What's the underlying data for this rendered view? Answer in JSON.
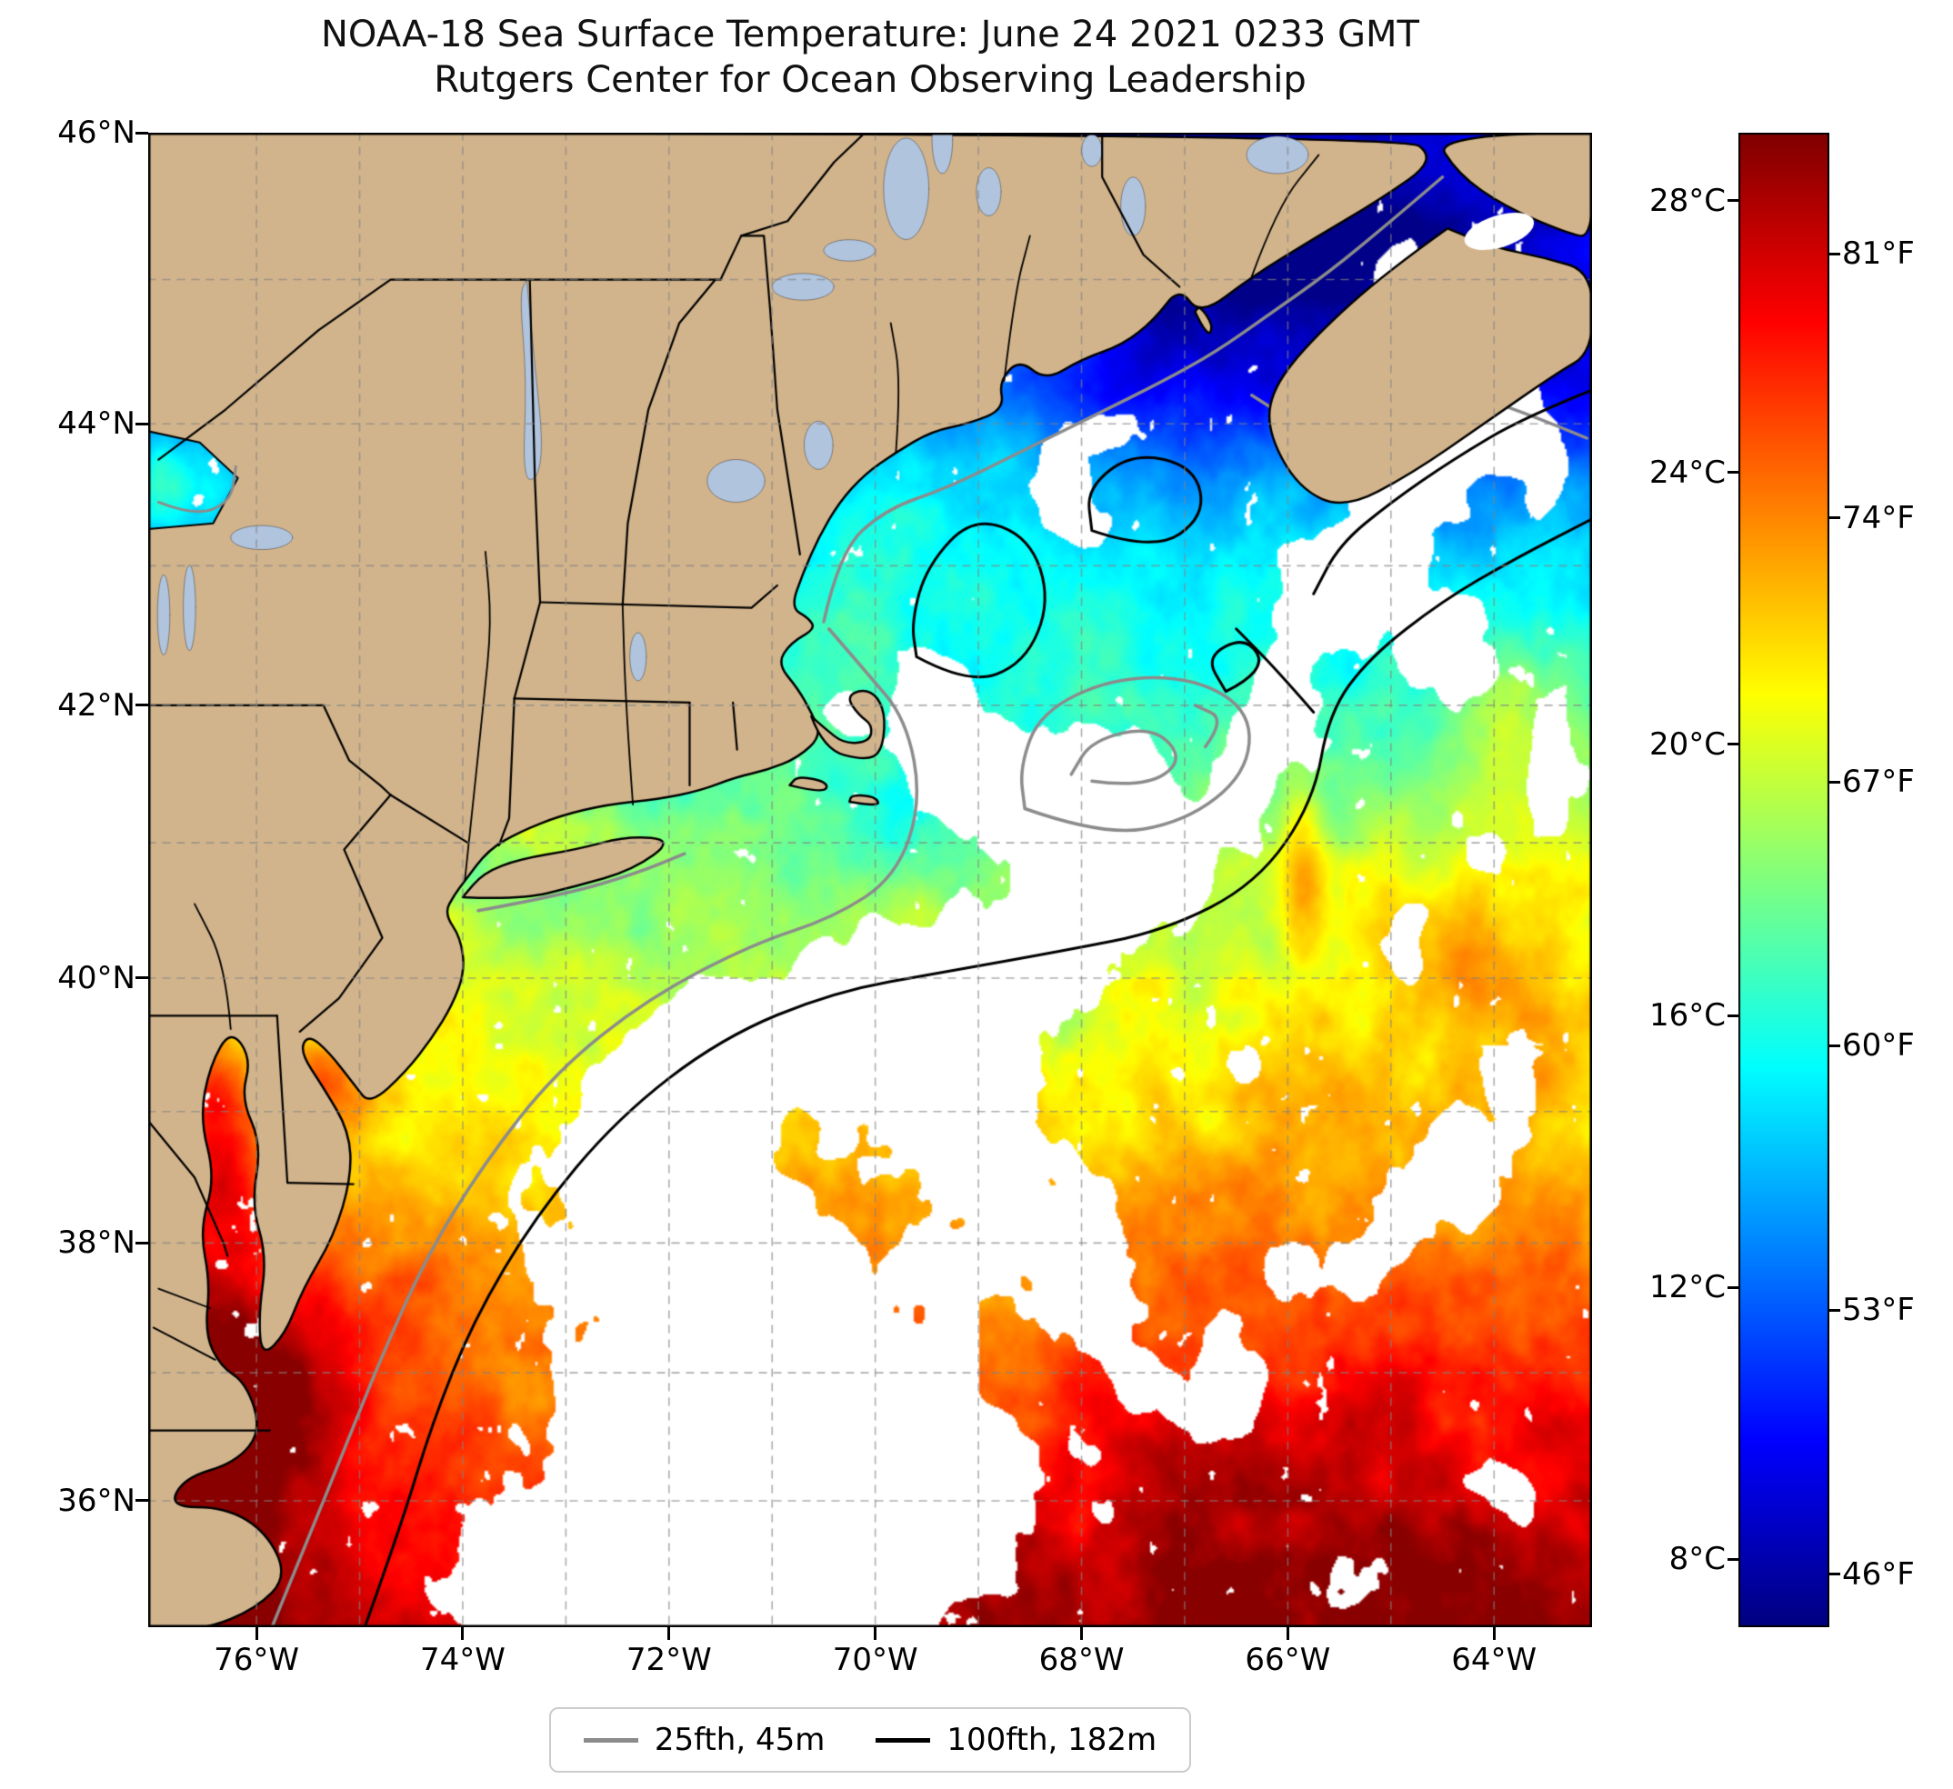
{
  "title": {
    "line1": "NOAA-18 Sea Surface Temperature: June 24 2021 0233 GMT",
    "line2": "Rutgers Center for Ocean Observing Leadership"
  },
  "axes": {
    "lat_ticks": [
      {
        "label": "46°N",
        "value": 46
      },
      {
        "label": "44°N",
        "value": 44
      },
      {
        "label": "42°N",
        "value": 42
      },
      {
        "label": "40°N",
        "value": 40
      },
      {
        "label": "38°N",
        "value": 38
      },
      {
        "label": "36°N",
        "value": 36
      }
    ],
    "lon_ticks": [
      {
        "label": "76°W",
        "value": -76
      },
      {
        "label": "74°W",
        "value": -74
      },
      {
        "label": "72°W",
        "value": -72
      },
      {
        "label": "70°W",
        "value": -70
      },
      {
        "label": "68°W",
        "value": -68
      },
      {
        "label": "66°W",
        "value": -66
      },
      {
        "label": "64°W",
        "value": -64
      }
    ]
  },
  "colorbar": {
    "vmin": 7,
    "vmax": 29,
    "celsius_ticks": [
      {
        "label": "28°C",
        "value": 28
      },
      {
        "label": "24°C",
        "value": 24
      },
      {
        "label": "20°C",
        "value": 20
      },
      {
        "label": "16°C",
        "value": 16
      },
      {
        "label": "12°C",
        "value": 12
      },
      {
        "label": "8°C",
        "value": 8
      }
    ],
    "fahrenheit_ticks": [
      {
        "label": "81°F",
        "value_c": 27.22
      },
      {
        "label": "74°F",
        "value_c": 23.33
      },
      {
        "label": "67°F",
        "value_c": 19.44
      },
      {
        "label": "60°F",
        "value_c": 15.56
      },
      {
        "label": "53°F",
        "value_c": 11.67
      },
      {
        "label": "46°F",
        "value_c": 7.78
      }
    ]
  },
  "legend": {
    "items": [
      {
        "label": "25fth, 45m",
        "color": "#8c8c8c"
      },
      {
        "label": "100fth, 182m",
        "color": "#000000"
      }
    ]
  },
  "map": {
    "extent": {
      "lon_west": -77.05,
      "lon_east": -63.05,
      "lat_south": 35.0,
      "lat_north": 46.0
    },
    "colors": {
      "land": "#d2b48c",
      "lakes": "#b0c4de",
      "clouds": "#ffffff",
      "coastline": "#000000",
      "grid": "#8c8c8c"
    }
  },
  "chart_data": {
    "type": "heatmap",
    "title": "NOAA-18 Sea Surface Temperature: June 24 2021 0233 GMT",
    "subtitle": "Rutgers Center for Ocean Observing Leadership",
    "colorbar_celsius": [
      8,
      12,
      16,
      20,
      24,
      28
    ],
    "colorbar_fahrenheit": [
      46,
      53,
      60,
      67,
      74,
      81
    ],
    "lon_ticks_deg_w": [
      76,
      74,
      72,
      70,
      68,
      66,
      64
    ],
    "lat_ticks_deg_n": [
      36,
      38,
      40,
      42,
      44,
      46
    ],
    "colormap": "jet",
    "contour_legend": [
      "25fth, 45m",
      "100fth, 182m"
    ]
  }
}
